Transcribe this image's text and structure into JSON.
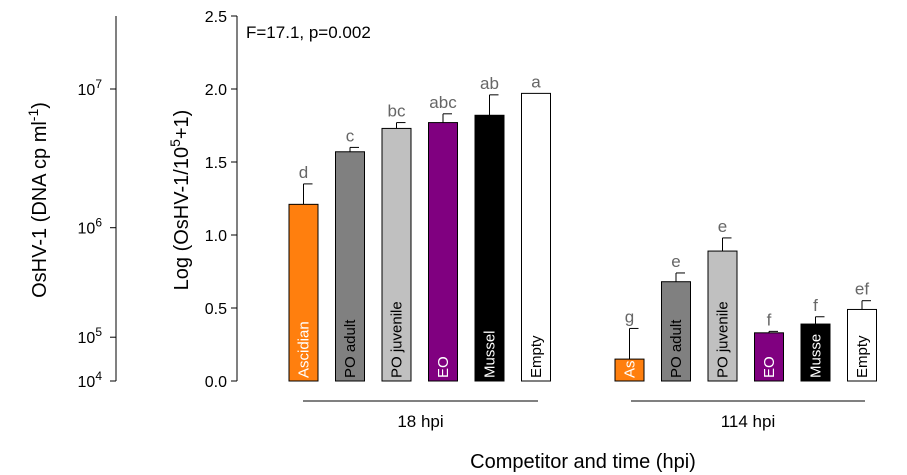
{
  "chart_data": {
    "type": "bar",
    "annotation": "F=17.1, p=0.002",
    "xlabel": "Competitor and time (hpi)",
    "ylabel_main": "Log (OsHV-1/10^5+1)",
    "ylabel_secondary": "OsHV-1 (DNA cp ml^-1)",
    "ylim": [
      0,
      2.5
    ],
    "yticks": [
      "0.0",
      "0.5",
      "1.0",
      "1.5",
      "2.0",
      "2.5"
    ],
    "secondary_axis": {
      "ticks": [
        {
          "label": "10",
          "exp": "4",
          "at": 0.0
        },
        {
          "label": "10",
          "exp": "5",
          "at": 0.3
        },
        {
          "label": "10",
          "exp": "6",
          "at": 1.05
        },
        {
          "label": "10",
          "exp": "7",
          "at": 2.0
        }
      ]
    },
    "groups": [
      {
        "label": "18 hpi",
        "bars": [
          {
            "name": "Ascidian",
            "value": 1.21,
            "err": 0.14,
            "letter": "d",
            "color": "#ff7f0e",
            "text_color": "#ffffff"
          },
          {
            "name": "PO adult",
            "value": 1.57,
            "err": 0.03,
            "letter": "c",
            "color": "#808080",
            "text_color": "#000000"
          },
          {
            "name": "PO juvenile",
            "value": 1.73,
            "err": 0.04,
            "letter": "bc",
            "color": "#c0c0c0",
            "text_color": "#000000"
          },
          {
            "name": "EO",
            "value": 1.77,
            "err": 0.06,
            "letter": "abc",
            "color": "#800080",
            "text_color": "#ffffff"
          },
          {
            "name": "Mussel",
            "value": 1.82,
            "err": 0.14,
            "letter": "ab",
            "color": "#000000",
            "text_color": "#ffffff"
          },
          {
            "name": "Empty",
            "value": 1.97,
            "err": 0.0,
            "letter": "a",
            "color": "#ffffff",
            "text_color": "#000000"
          }
        ]
      },
      {
        "label": "114 hpi",
        "bars": [
          {
            "name": "As",
            "value": 0.15,
            "err": 0.21,
            "letter": "g",
            "color": "#ff7f0e",
            "text_color": "#ffffff"
          },
          {
            "name": "PO adult",
            "value": 0.68,
            "err": 0.06,
            "letter": "e",
            "color": "#808080",
            "text_color": "#000000"
          },
          {
            "name": "PO juvenile",
            "value": 0.89,
            "err": 0.09,
            "letter": "e",
            "color": "#c0c0c0",
            "text_color": "#000000"
          },
          {
            "name": "EO",
            "value": 0.33,
            "err": 0.01,
            "letter": "f",
            "color": "#800080",
            "text_color": "#ffffff"
          },
          {
            "name": "Musse",
            "value": 0.39,
            "err": 0.05,
            "letter": "f",
            "color": "#000000",
            "text_color": "#ffffff"
          },
          {
            "name": "Empty",
            "value": 0.49,
            "err": 0.06,
            "letter": "ef",
            "color": "#ffffff",
            "text_color": "#000000"
          }
        ]
      }
    ]
  }
}
